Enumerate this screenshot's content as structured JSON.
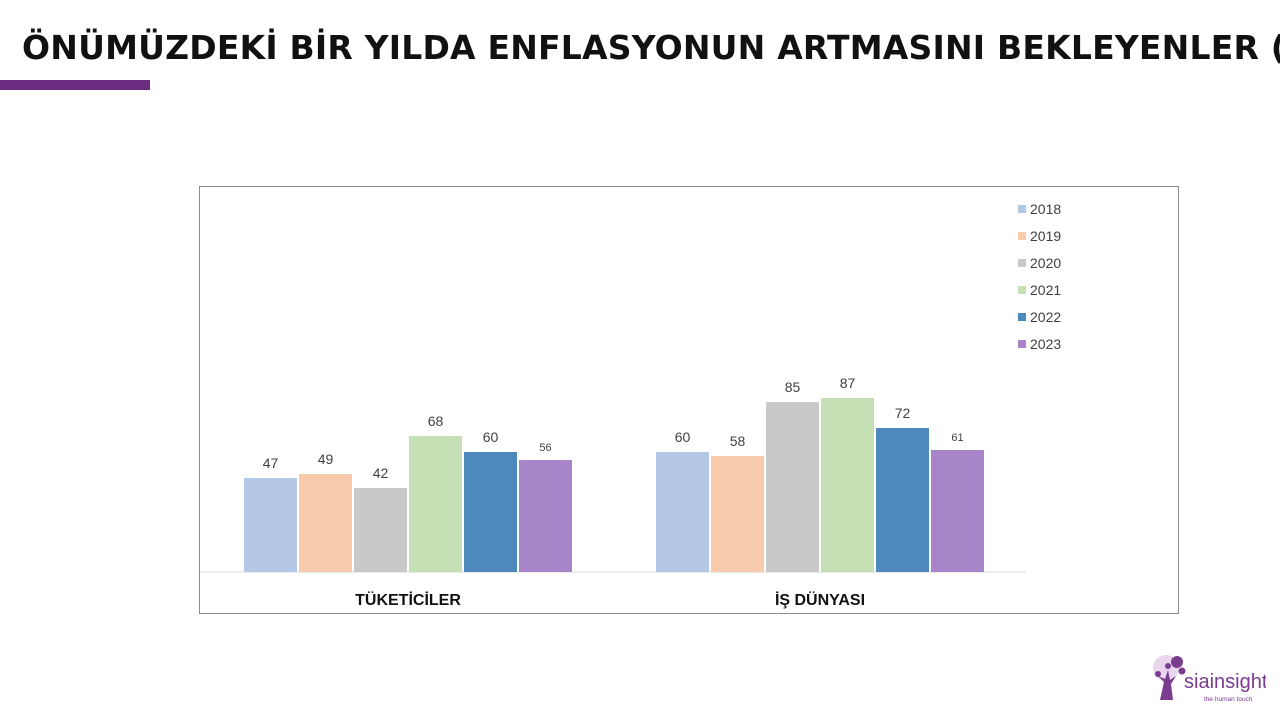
{
  "page": {
    "title": "ÖNÜMÜZDEKİ BİR YILDA ENFLASYONUN ARTMASINI BEKLEYENLER (%)",
    "accent_color": "#6b2d7f"
  },
  "chart_data": {
    "type": "bar",
    "categories": [
      "TÜKETİCİLER",
      "İŞ DÜNYASI"
    ],
    "series": [
      {
        "name": "2018",
        "color": "#b4c7e7",
        "values": [
          47,
          60
        ]
      },
      {
        "name": "2019",
        "color": "#f8cbad",
        "values": [
          49,
          58
        ]
      },
      {
        "name": "2020",
        "color": "#c9c9c9",
        "values": [
          42,
          85
        ]
      },
      {
        "name": "2021",
        "color": "#c5e0b4",
        "values": [
          68,
          87
        ]
      },
      {
        "name": "2022",
        "color": "#4e89be",
        "values": [
          60,
          72
        ]
      },
      {
        "name": "2023",
        "color": "#a884c8",
        "values": [
          56,
          61
        ]
      }
    ],
    "ylim": [
      0,
      100
    ],
    "grid": false,
    "legend_position": "right"
  },
  "logo": {
    "name": "sia insight logo",
    "brand_text": "siainsight",
    "tagline": "the human touch",
    "color": "#7b3b8e"
  }
}
